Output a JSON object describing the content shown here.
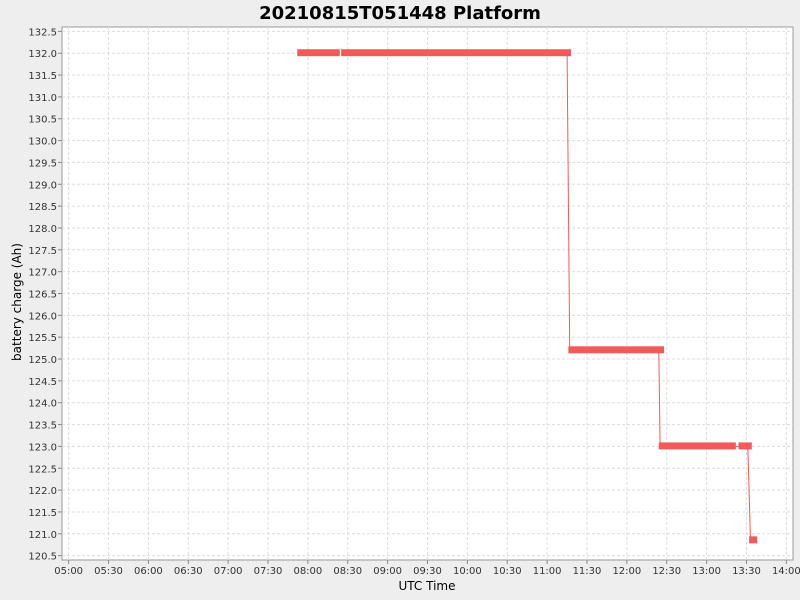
{
  "chart_data": {
    "type": "line",
    "title": "20210815T051448 Platform",
    "xlabel": "UTC Time",
    "ylabel": "battery charge (Ah)",
    "xlim": [
      "04:55",
      "14:05"
    ],
    "ylim": [
      120.4,
      132.6
    ],
    "grid": true,
    "x_ticks": [
      "05:00",
      "05:30",
      "06:00",
      "06:30",
      "07:00",
      "07:30",
      "08:00",
      "08:30",
      "09:00",
      "09:30",
      "10:00",
      "10:30",
      "11:00",
      "11:30",
      "12:00",
      "12:30",
      "13:00",
      "13:30",
      "14:00"
    ],
    "y_ticks": [
      "120.5",
      "121.0",
      "121.5",
      "122.0",
      "122.5",
      "123.0",
      "123.5",
      "124.0",
      "124.5",
      "125.0",
      "125.5",
      "126.0",
      "126.5",
      "127.0",
      "127.5",
      "128.0",
      "128.5",
      "129.0",
      "129.5",
      "130.0",
      "130.5",
      "131.0",
      "131.5",
      "132.0",
      "132.5"
    ],
    "series": [
      {
        "color": "#f25a5a",
        "segments": [
          {
            "x": [
              "07:52",
              "08:24"
            ],
            "y": 132.0
          },
          {
            "x": [
              "08:25",
              "11:18"
            ],
            "y": 132.0
          },
          {
            "x": [
              "11:16",
              "12:28"
            ],
            "y": 125.2
          },
          {
            "x": [
              "12:24",
              "13:22"
            ],
            "y": 123.0
          },
          {
            "x": [
              "13:24",
              "13:34"
            ],
            "y": 123.0
          },
          {
            "x": [
              "13:32",
              "13:38"
            ],
            "y": 120.85
          }
        ],
        "step_line": [
          {
            "x": "11:15",
            "y": 132.0
          },
          {
            "x": "11:17",
            "y": 125.2
          },
          {
            "x": "12:24",
            "y": 125.2
          },
          {
            "x": "12:25",
            "y": 123.0
          },
          {
            "x": "13:31",
            "y": 123.0
          },
          {
            "x": "13:33",
            "y": 120.85
          }
        ]
      }
    ]
  }
}
